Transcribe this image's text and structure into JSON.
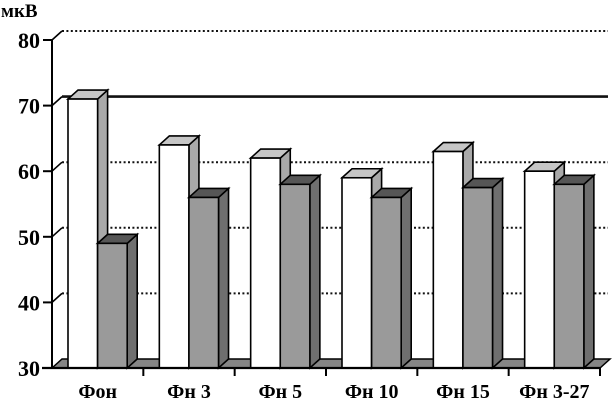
{
  "chart_data": {
    "type": "bar",
    "style": "3d-block-bars",
    "title": "",
    "y_axis_title": "мкВ",
    "xlabel": "",
    "ylabel": "мкВ",
    "ylim": [
      30,
      80
    ],
    "y_ticks": [
      80,
      70,
      60,
      50,
      40,
      30
    ],
    "grid": "dotted horizontal gridlines at 40,50,60,80; solid reference line at 70",
    "reference_line_value": 70,
    "legend": "none",
    "categories": [
      "Фон",
      "Фн 3",
      "Фн 5",
      "Фн 10",
      "Фн 15",
      "Фн 3-27"
    ],
    "series": [
      {
        "name": "white-bars",
        "values": [
          71,
          64,
          62,
          59,
          63,
          60
        ],
        "front_color": "#ffffff",
        "top_color": "#c6c6c6",
        "side_color": "#a9a9a9"
      },
      {
        "name": "gray-bars",
        "values": [
          49,
          56,
          58,
          56,
          57.5,
          58
        ],
        "front_color": "#9a9a9a",
        "top_color": "#565656",
        "side_color": "#6f6f6f"
      }
    ],
    "floor_color": "#858585",
    "axis_color": "#000000",
    "gridline_color": "#111111"
  }
}
